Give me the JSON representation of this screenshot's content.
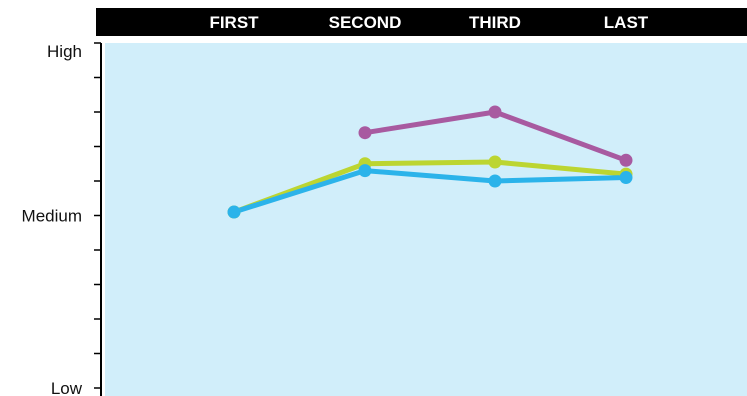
{
  "chart_data": {
    "type": "line",
    "categories": [
      "FIRST",
      "SECOND",
      "THIRD",
      "LAST"
    ],
    "y_tick_labels": [
      "Low",
      "Medium",
      "High"
    ],
    "ylim": [
      0,
      10
    ],
    "grid": false,
    "legend": "none",
    "series": [
      {
        "color": "#a85aa0",
        "values": [
          null,
          7.4,
          8.0,
          6.6
        ]
      },
      {
        "color": "#bcd531",
        "values": [
          5.1,
          6.5,
          6.55,
          6.2
        ]
      },
      {
        "color": "#2bb3ea",
        "values": [
          5.1,
          6.3,
          6.0,
          6.1
        ]
      }
    ],
    "colors": {
      "plot_background": "#d1eefa",
      "header_bar": "#000000",
      "axis": "#000000"
    }
  }
}
